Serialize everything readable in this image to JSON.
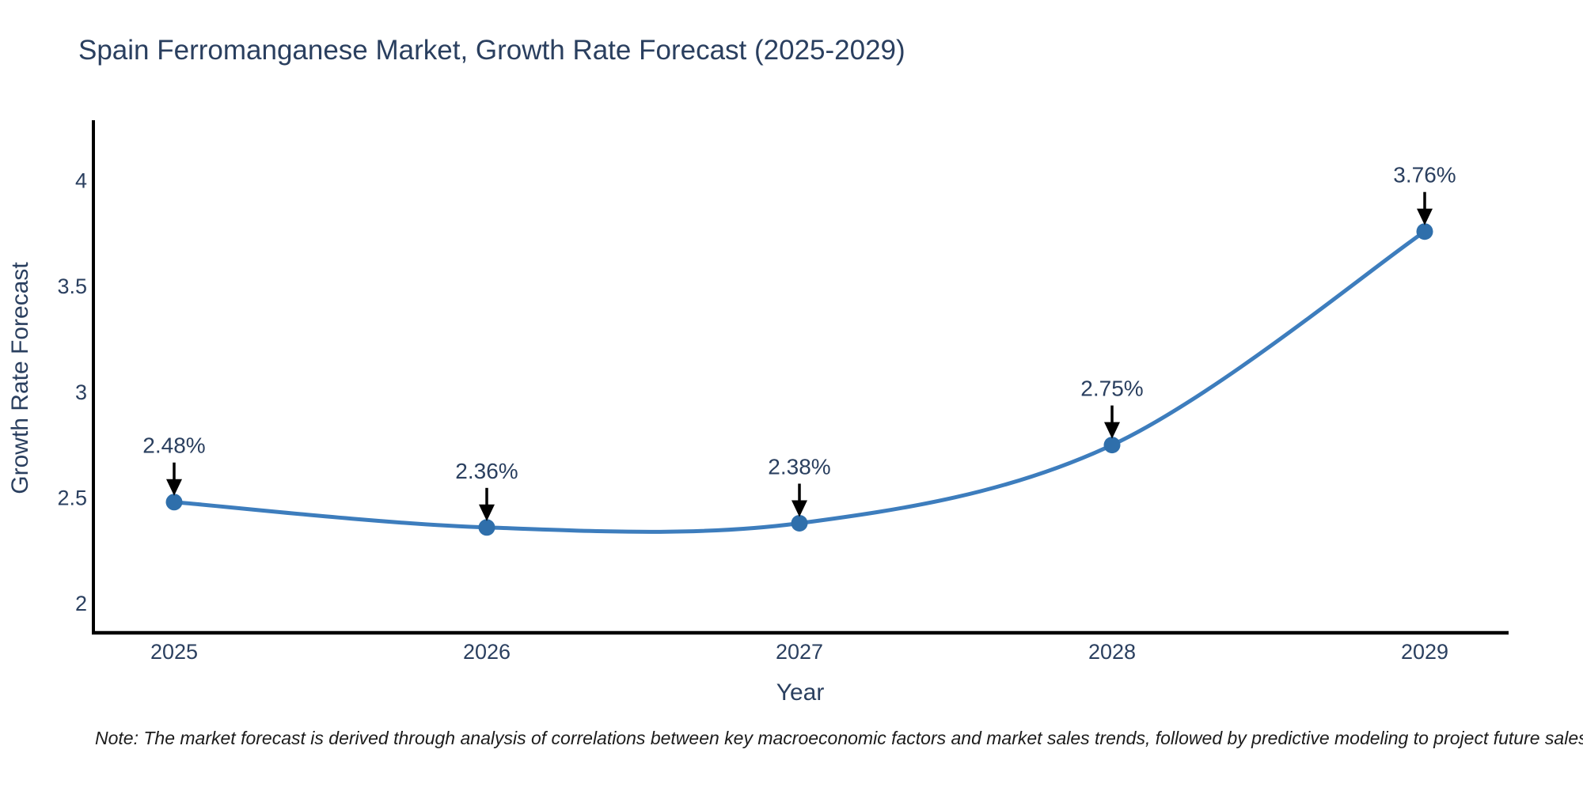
{
  "page": {
    "background": "#ffffff"
  },
  "chart_data": {
    "type": "line",
    "title": "Spain Ferromanganese Market, Growth Rate Forecast (2025-2029)",
    "xlabel": "Year",
    "ylabel": "Growth Rate Forecast",
    "x": [
      2025,
      2026,
      2027,
      2028,
      2029
    ],
    "series": [
      {
        "name": "Growth Rate Forecast",
        "values": [
          2.48,
          2.36,
          2.38,
          2.75,
          3.76
        ]
      }
    ],
    "point_labels": [
      "2.48%",
      "2.36%",
      "2.38%",
      "2.75%",
      "3.76%"
    ],
    "yticks": [
      2,
      2.5,
      3,
      3.5,
      4
    ],
    "ylim": [
      1.86,
      4.28
    ],
    "grid": false,
    "legend": false,
    "curve": "spline",
    "annotation_arrows": true,
    "colors": {
      "line": "#3d7dbd",
      "marker": "#2f6fab",
      "axis": "#000000",
      "text": "#2a3f5f",
      "annotation_arrow": "#000000"
    }
  },
  "note": {
    "text": "Note: The market forecast is derived through analysis of correlations between key macroeconomic factors and market sales trends, followed by predictive modeling to project future sales"
  }
}
